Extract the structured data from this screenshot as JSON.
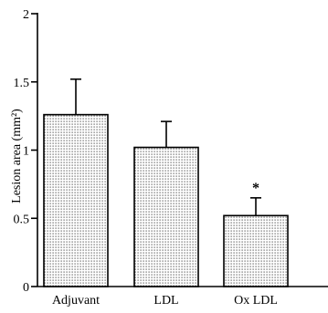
{
  "chart_data": {
    "type": "bar",
    "categories": [
      "Adjuvant",
      "LDL",
      "Ox LDL"
    ],
    "values": [
      1.26,
      1.02,
      0.52
    ],
    "errors": [
      0.26,
      0.19,
      0.13
    ],
    "ylabel": "Lesion area (mm²)",
    "ylim": [
      0,
      2
    ],
    "yticks": [
      0,
      0.5,
      1,
      1.5,
      2
    ],
    "ytick_labels": [
      "0",
      "0.5",
      "1",
      "1.5",
      "2"
    ],
    "annotations": [
      {
        "category": "Ox LDL",
        "text": "*"
      }
    ],
    "bar_pattern": "stippled",
    "grid": false,
    "legend": "none"
  }
}
